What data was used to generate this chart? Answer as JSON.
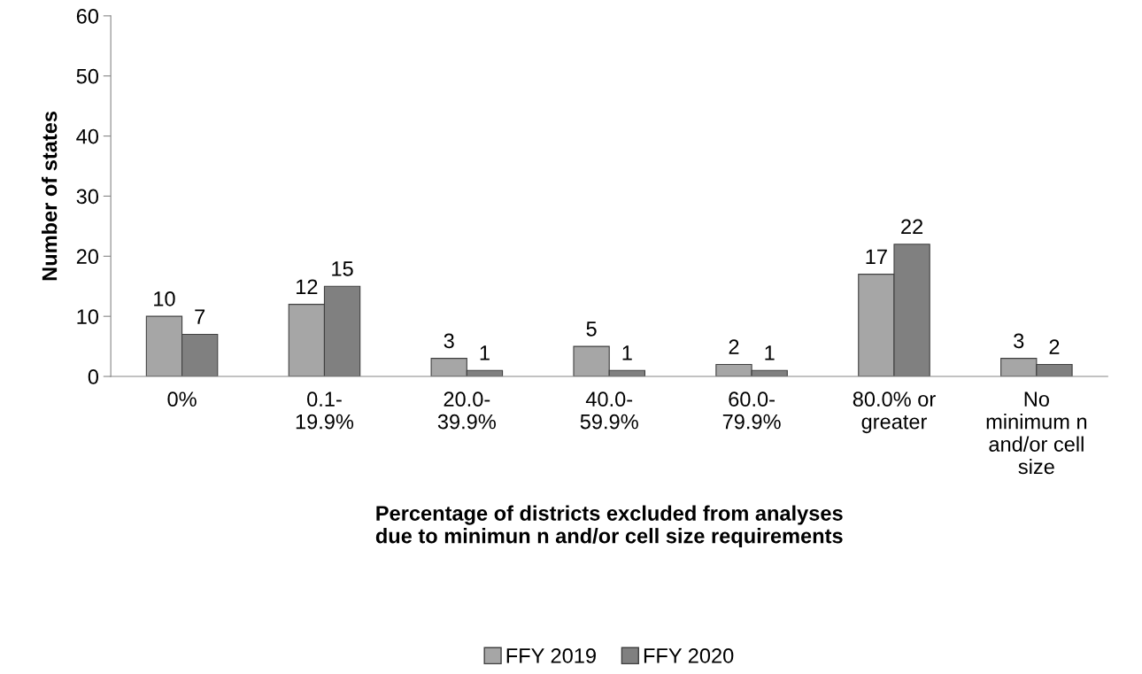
{
  "chart_data": {
    "type": "bar",
    "xlabel": "Percentage of districts excluded from analyses\ndue to minimun n and/or cell size requirements",
    "ylabel": "Number of states",
    "categories": [
      "0%",
      "0.1-\n19.9%",
      "20.0-\n39.9%",
      "40.0-\n59.9%",
      "60.0-\n79.9%",
      "80.0% or\ngreater",
      "No\nminimum n\nand/or cell\nsize"
    ],
    "series": [
      {
        "name": "FFY 2019",
        "color": "#a6a6a6",
        "values": [
          10,
          12,
          3,
          5,
          2,
          17,
          3
        ]
      },
      {
        "name": "FFY 2020",
        "color": "#808080",
        "values": [
          7,
          15,
          1,
          1,
          1,
          22,
          2
        ]
      }
    ],
    "ylim": [
      0,
      60
    ],
    "yticks": [
      0,
      10,
      20,
      30,
      40,
      50,
      60
    ],
    "grid": false,
    "legend": "bottom",
    "data_labels": true
  }
}
